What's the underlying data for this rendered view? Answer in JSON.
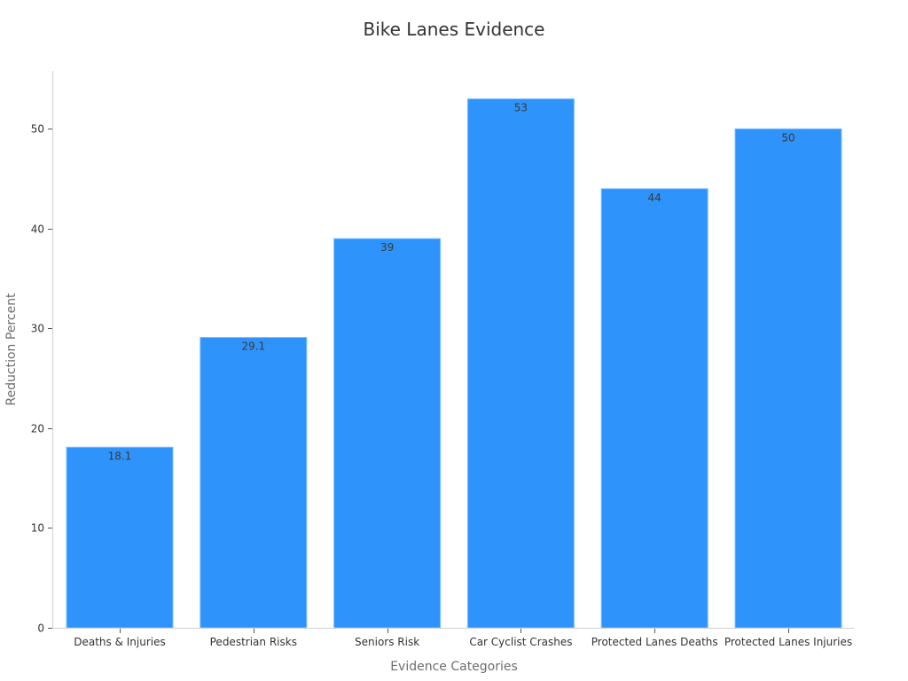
{
  "chart_data": {
    "type": "bar",
    "title": "Bike Lanes Evidence",
    "xlabel": "Evidence Categories",
    "ylabel": "Reduction Percent",
    "categories": [
      "Deaths & Injuries",
      "Pedestrian Risks",
      "Seniors Risk",
      "Car Cyclist Crashes",
      "Protected Lanes Deaths",
      "Protected Lanes Injuries"
    ],
    "values": [
      18.1,
      29.1,
      39,
      53,
      44,
      50
    ],
    "data_labels": [
      "18.1",
      "29.1",
      "39",
      "53",
      "44",
      "50"
    ],
    "yticks": [
      0,
      10,
      20,
      30,
      40,
      50
    ],
    "ylim": [
      0,
      55.8
    ],
    "grid": false,
    "legend": null,
    "colors": {
      "bar": "#2e93fa",
      "bar_edge": "#7fbfff"
    }
  }
}
